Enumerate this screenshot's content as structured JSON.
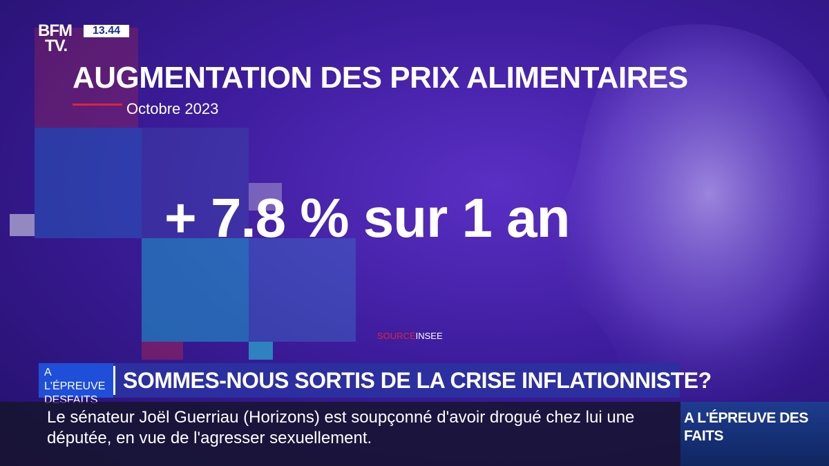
{
  "channel": {
    "logo_line1": "BFM",
    "logo_line2": "TV.",
    "time": "13.44"
  },
  "graphic": {
    "headline": "AUGMENTATION DES PRIX ALIMENTAIRES",
    "subtitle": "Octobre 2023",
    "stat": "+ 7.8 % sur 1 an",
    "source_label": "SOURCE",
    "source_value": "INSEE"
  },
  "banner": {
    "tag_line1": "A L'ÉPREUVE",
    "tag_line2a": "DES",
    "tag_line2b": "FAITS",
    "question": "SOMMES-NOUS SORTIS DE LA CRISE INFLATIONNISTE?"
  },
  "ticker": {
    "text": "Le sénateur Joël Guerriau (Horizons) est soupçonné d'avoir drogué chez lui une députée, en vue de l'agresser sexuellement."
  },
  "side": {
    "label": "A L'ÉPREUVE DES FAITS"
  },
  "colors": {
    "accent_red": "#e0233a",
    "banner_blue": "#1f4fd8",
    "background_purple": "#3d1c9c"
  }
}
